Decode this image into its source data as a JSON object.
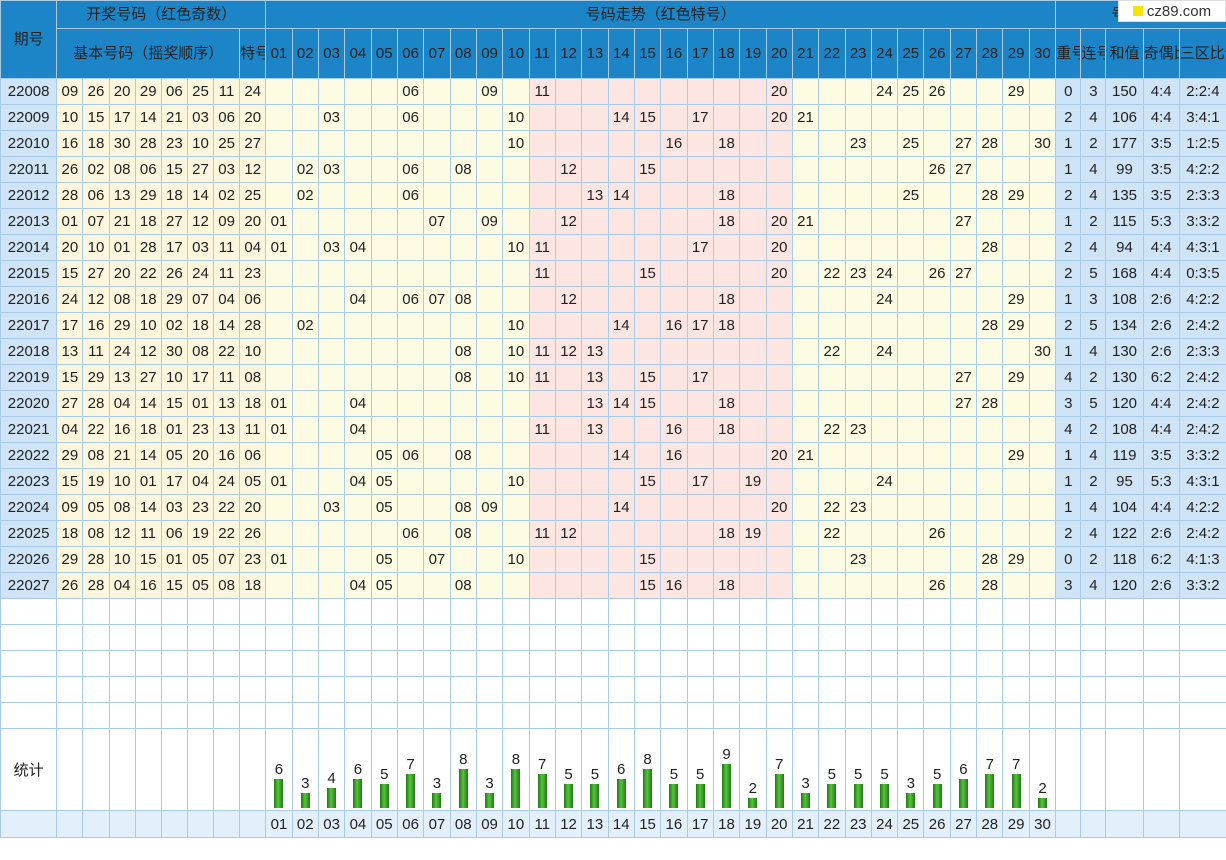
{
  "header": {
    "period": "期号",
    "draw_group": "开奖号码（红色奇数）",
    "basic": "基本号码（摇奖顺序）",
    "special": "特号",
    "trend_group": "号码走势（红色特号）",
    "analysis_group": "号码分析",
    "repeat": "重号",
    "consecutive": "连号",
    "sum": "和值",
    "odd_even": "奇偶比例",
    "zone": "三区比例"
  },
  "logo_text": "cz89.com",
  "numbers": [
    "01",
    "02",
    "03",
    "04",
    "05",
    "06",
    "07",
    "08",
    "09",
    "10",
    "11",
    "12",
    "13",
    "14",
    "15",
    "16",
    "17",
    "18",
    "19",
    "20",
    "21",
    "22",
    "23",
    "24",
    "25",
    "26",
    "27",
    "28",
    "29",
    "30"
  ],
  "rows": [
    {
      "period": "22008",
      "basic": [
        "09",
        "26",
        "20",
        "29",
        "06",
        "25",
        "11"
      ],
      "special": "24",
      "repeat": "0",
      "consecutive": "3",
      "sum": "150",
      "odd_even": "4:4",
      "zone": "2:2:4"
    },
    {
      "period": "22009",
      "basic": [
        "10",
        "15",
        "17",
        "14",
        "21",
        "03",
        "06"
      ],
      "special": "20",
      "repeat": "2",
      "consecutive": "4",
      "sum": "106",
      "odd_even": "4:4",
      "zone": "3:4:1"
    },
    {
      "period": "22010",
      "basic": [
        "16",
        "18",
        "30",
        "28",
        "23",
        "10",
        "25"
      ],
      "special": "27",
      "repeat": "1",
      "consecutive": "2",
      "sum": "177",
      "odd_even": "3:5",
      "zone": "1:2:5"
    },
    {
      "period": "22011",
      "basic": [
        "26",
        "02",
        "08",
        "06",
        "15",
        "27",
        "03"
      ],
      "special": "12",
      "repeat": "1",
      "consecutive": "4",
      "sum": "99",
      "odd_even": "3:5",
      "zone": "4:2:2"
    },
    {
      "period": "22012",
      "basic": [
        "28",
        "06",
        "13",
        "29",
        "18",
        "14",
        "02"
      ],
      "special": "25",
      "repeat": "2",
      "consecutive": "4",
      "sum": "135",
      "odd_even": "3:5",
      "zone": "2:3:3"
    },
    {
      "period": "22013",
      "basic": [
        "01",
        "07",
        "21",
        "18",
        "27",
        "12",
        "09"
      ],
      "special": "20",
      "repeat": "1",
      "consecutive": "2",
      "sum": "115",
      "odd_even": "5:3",
      "zone": "3:3:2"
    },
    {
      "period": "22014",
      "basic": [
        "20",
        "10",
        "01",
        "28",
        "17",
        "03",
        "11"
      ],
      "special": "04",
      "repeat": "2",
      "consecutive": "4",
      "sum": "94",
      "odd_even": "4:4",
      "zone": "4:3:1"
    },
    {
      "period": "22015",
      "basic": [
        "15",
        "27",
        "20",
        "22",
        "26",
        "24",
        "11"
      ],
      "special": "23",
      "repeat": "2",
      "consecutive": "5",
      "sum": "168",
      "odd_even": "4:4",
      "zone": "0:3:5"
    },
    {
      "period": "22016",
      "basic": [
        "24",
        "12",
        "08",
        "18",
        "29",
        "07",
        "04"
      ],
      "special": "06",
      "repeat": "1",
      "consecutive": "3",
      "sum": "108",
      "odd_even": "2:6",
      "zone": "4:2:2"
    },
    {
      "period": "22017",
      "basic": [
        "17",
        "16",
        "29",
        "10",
        "02",
        "18",
        "14"
      ],
      "special": "28",
      "repeat": "2",
      "consecutive": "5",
      "sum": "134",
      "odd_even": "2:6",
      "zone": "2:4:2"
    },
    {
      "period": "22018",
      "basic": [
        "13",
        "11",
        "24",
        "12",
        "30",
        "08",
        "22"
      ],
      "special": "10",
      "repeat": "1",
      "consecutive": "4",
      "sum": "130",
      "odd_even": "2:6",
      "zone": "2:3:3"
    },
    {
      "period": "22019",
      "basic": [
        "15",
        "29",
        "13",
        "27",
        "10",
        "17",
        "11"
      ],
      "special": "08",
      "repeat": "4",
      "consecutive": "2",
      "sum": "130",
      "odd_even": "6:2",
      "zone": "2:4:2"
    },
    {
      "period": "22020",
      "basic": [
        "27",
        "28",
        "04",
        "14",
        "15",
        "01",
        "13"
      ],
      "special": "18",
      "repeat": "3",
      "consecutive": "5",
      "sum": "120",
      "odd_even": "4:4",
      "zone": "2:4:2"
    },
    {
      "period": "22021",
      "basic": [
        "04",
        "22",
        "16",
        "18",
        "01",
        "23",
        "13"
      ],
      "special": "11",
      "repeat": "4",
      "consecutive": "2",
      "sum": "108",
      "odd_even": "4:4",
      "zone": "2:4:2"
    },
    {
      "period": "22022",
      "basic": [
        "29",
        "08",
        "21",
        "14",
        "05",
        "20",
        "16"
      ],
      "special": "06",
      "repeat": "1",
      "consecutive": "4",
      "sum": "119",
      "odd_even": "3:5",
      "zone": "3:3:2"
    },
    {
      "period": "22023",
      "basic": [
        "15",
        "19",
        "10",
        "01",
        "17",
        "04",
        "24"
      ],
      "special": "05",
      "repeat": "1",
      "consecutive": "2",
      "sum": "95",
      "odd_even": "5:3",
      "zone": "4:3:1"
    },
    {
      "period": "22024",
      "basic": [
        "09",
        "05",
        "08",
        "14",
        "03",
        "23",
        "22"
      ],
      "special": "20",
      "repeat": "1",
      "consecutive": "4",
      "sum": "104",
      "odd_even": "4:4",
      "zone": "4:2:2"
    },
    {
      "period": "22025",
      "basic": [
        "18",
        "08",
        "12",
        "11",
        "06",
        "19",
        "22"
      ],
      "special": "26",
      "repeat": "2",
      "consecutive": "4",
      "sum": "122",
      "odd_even": "2:6",
      "zone": "2:4:2"
    },
    {
      "period": "22026",
      "basic": [
        "29",
        "28",
        "10",
        "15",
        "01",
        "05",
        "07"
      ],
      "special": "23",
      "repeat": "0",
      "consecutive": "2",
      "sum": "118",
      "odd_even": "6:2",
      "zone": "4:1:3"
    },
    {
      "period": "22027",
      "basic": [
        "26",
        "28",
        "04",
        "16",
        "15",
        "05",
        "08"
      ],
      "special": "18",
      "repeat": "3",
      "consecutive": "4",
      "sum": "120",
      "odd_even": "2:6",
      "zone": "3:3:2"
    }
  ],
  "stats_label": "统计",
  "stats": [
    6,
    3,
    4,
    6,
    5,
    7,
    3,
    8,
    3,
    8,
    7,
    5,
    5,
    6,
    8,
    5,
    5,
    9,
    2,
    7,
    3,
    5,
    5,
    5,
    3,
    5,
    6,
    7,
    7,
    2
  ],
  "colors": {
    "header": "#1b85c7",
    "red": "#e5211d",
    "yellow_zone": "#fdfbe1",
    "pink_zone": "#fde6e2",
    "period_bg": "#cfe4f6",
    "bar": "#3aa52a"
  }
}
